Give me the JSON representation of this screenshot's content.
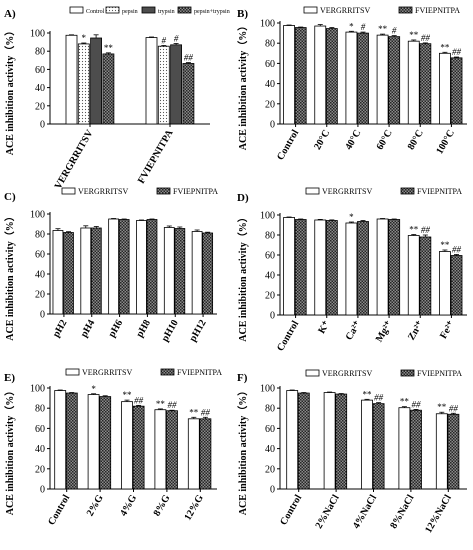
{
  "patterns": {
    "control": "white",
    "pepsin": "dots",
    "trypsin": "gray",
    "combo": "check",
    "sv": "white",
    "pa": "check"
  },
  "chart_data": [
    {
      "label": "A)",
      "type": "bar",
      "ylabel": "ACE inhibition activity（%）",
      "ylim": [
        0,
        100
      ],
      "yticks": [
        0,
        20,
        40,
        60,
        80,
        100
      ],
      "legend": [
        "Control",
        "pepsin",
        "trypsin",
        "pepsin+trypsin"
      ],
      "groups": [
        "VERGRRITSV",
        "FVIEPNITPA"
      ],
      "rotate_labels": true,
      "series": [
        {
          "name": "Control",
          "values": [
            97.5,
            95.0
          ],
          "err": [
            0.5,
            0.6
          ],
          "marks": [
            "",
            ""
          ],
          "pattern": "control"
        },
        {
          "name": "pepsin",
          "values": [
            88.0,
            85.5
          ],
          "err": [
            1.0,
            0.8
          ],
          "marks": [
            "*",
            "#"
          ],
          "pattern": "pepsin"
        },
        {
          "name": "trypsin",
          "values": [
            94.5,
            87.0
          ],
          "err": [
            3.5,
            1.5
          ],
          "marks": [
            "",
            "#"
          ],
          "pattern": "trypsin"
        },
        {
          "name": "pepsin+trypsin",
          "values": [
            77.0,
            66.5
          ],
          "err": [
            1.2,
            1.0
          ],
          "marks": [
            "**",
            "##"
          ],
          "pattern": "combo"
        }
      ]
    },
    {
      "label": "B)",
      "type": "bar",
      "ylabel": "ACE inhibition activity（%）",
      "ylim": [
        0,
        100
      ],
      "yticks": [
        0,
        20,
        40,
        60,
        80,
        100
      ],
      "legend": [
        "VERGRRITSV",
        "FVIEPNITPA"
      ],
      "categories": [
        "Control",
        "20°C",
        "40°C",
        "60°C",
        "80°C",
        "100°C"
      ],
      "rotate_labels": true,
      "series": [
        {
          "name": "VERGRRITSV",
          "values": [
            97.5,
            97.0,
            91.0,
            88.0,
            82.0,
            70.0
          ],
          "err": [
            0.5,
            1.5,
            0.8,
            1.0,
            1.2,
            1.0
          ],
          "marks": [
            "",
            "",
            "*",
            "**",
            "**",
            "**"
          ],
          "pattern": "sv"
        },
        {
          "name": "FVIEPNITPA",
          "values": [
            95.5,
            94.5,
            90.0,
            86.5,
            79.5,
            65.5
          ],
          "err": [
            0.5,
            1.0,
            1.0,
            1.0,
            0.8,
            0.8
          ],
          "marks": [
            "",
            "",
            "#",
            "#",
            "##",
            "##"
          ],
          "pattern": "pa"
        }
      ]
    },
    {
      "label": "C)",
      "type": "bar",
      "ylabel": "ACE inhibition activity（%）",
      "ylim": [
        0,
        100
      ],
      "yticks": [
        0,
        20,
        40,
        60,
        80,
        100
      ],
      "legend": [
        "VERGRRITSV",
        "FVIEPNITPA"
      ],
      "categories": [
        "pH2",
        "pH4",
        "pH6",
        "pH8",
        "pH10",
        "pH12"
      ],
      "rotate_labels": true,
      "series": [
        {
          "name": "VERGRRITSV",
          "values": [
            83.5,
            86.0,
            95.0,
            93.5,
            86.5,
            82.5
          ],
          "err": [
            1.8,
            2.2,
            0.5,
            0.5,
            1.5,
            1.5
          ],
          "marks": [
            "",
            "",
            "",
            "",
            "",
            ""
          ],
          "pattern": "sv"
        },
        {
          "name": "FVIEPNITPA",
          "values": [
            81.5,
            86.0,
            94.5,
            94.5,
            85.5,
            81.0
          ],
          "err": [
            0.8,
            1.5,
            0.5,
            0.5,
            1.5,
            0.8
          ],
          "marks": [
            "",
            "",
            "",
            "",
            "",
            ""
          ],
          "pattern": "pa"
        }
      ]
    },
    {
      "label": "D)",
      "type": "bar",
      "ylabel": "ACE inhibition activity（%）",
      "ylim": [
        0,
        100
      ],
      "yticks": [
        0,
        20,
        40,
        60,
        80,
        100
      ],
      "legend": [
        "VERGRRITSV",
        "FVIEPNITPA"
      ],
      "categories": [
        "Control",
        "K⁺",
        "Ca²⁺",
        "Mg²⁺",
        "Zn²⁺",
        "Fe²⁺"
      ],
      "rotate_labels": true,
      "series": [
        {
          "name": "VERGRRITSV",
          "values": [
            97.5,
            95.0,
            92.0,
            96.0,
            79.5,
            63.5
          ],
          "err": [
            0.5,
            0.6,
            1.0,
            0.5,
            1.0,
            1.5
          ],
          "marks": [
            "",
            "",
            "*",
            "",
            "**",
            "**"
          ],
          "pattern": "sv"
        },
        {
          "name": "FVIEPNITPA",
          "values": [
            95.5,
            94.5,
            93.5,
            95.5,
            78.0,
            59.5
          ],
          "err": [
            0.5,
            0.6,
            1.0,
            0.5,
            2.0,
            1.0
          ],
          "marks": [
            "",
            "",
            "",
            "",
            "##",
            "##"
          ],
          "pattern": "pa"
        }
      ]
    },
    {
      "label": "E)",
      "type": "bar",
      "ylabel": "ACE inhibition activity（%）",
      "ylim": [
        0,
        100
      ],
      "yticks": [
        0,
        20,
        40,
        60,
        80,
        100
      ],
      "legend": [
        "VERGRRITSV",
        "FVIEPNITPA"
      ],
      "categories": [
        "Control",
        "2%G",
        "4%G",
        "8%G",
        "12%G"
      ],
      "rotate_labels": true,
      "series": [
        {
          "name": "VERGRRITSV",
          "values": [
            97.5,
            93.5,
            86.5,
            78.5,
            69.5
          ],
          "err": [
            0.5,
            0.8,
            1.5,
            0.8,
            1.5
          ],
          "marks": [
            "",
            "*",
            "**",
            "**",
            "**"
          ],
          "pattern": "sv"
        },
        {
          "name": "FVIEPNITPA",
          "values": [
            95.0,
            91.5,
            82.0,
            77.5,
            69.5
          ],
          "err": [
            0.5,
            0.8,
            0.8,
            0.5,
            1.5
          ],
          "marks": [
            "",
            "",
            "##",
            "##",
            "##"
          ],
          "pattern": "pa"
        }
      ]
    },
    {
      "label": "F)",
      "type": "bar",
      "ylabel": "ACE inhibition activity（%）",
      "ylim": [
        0,
        100
      ],
      "yticks": [
        0,
        20,
        40,
        60,
        80,
        100
      ],
      "legend": [
        "VERGRRITSV",
        "FVIEPNITPA"
      ],
      "categories": [
        "Control",
        "2%NaCl",
        "4%NaCl",
        "8%NaCl",
        "12%NaCl"
      ],
      "rotate_labels": true,
      "series": [
        {
          "name": "VERGRRITSV",
          "values": [
            97.5,
            95.5,
            88.0,
            80.5,
            74.5
          ],
          "err": [
            0.5,
            0.5,
            0.8,
            1.0,
            1.5
          ],
          "marks": [
            "",
            "",
            "**",
            "**",
            "**"
          ],
          "pattern": "sv"
        },
        {
          "name": "FVIEPNITPA",
          "values": [
            95.0,
            94.0,
            84.5,
            78.0,
            74.0
          ],
          "err": [
            0.5,
            0.5,
            1.0,
            0.8,
            1.0
          ],
          "marks": [
            "",
            "",
            "##",
            "##",
            "##"
          ],
          "pattern": "pa"
        }
      ]
    }
  ]
}
